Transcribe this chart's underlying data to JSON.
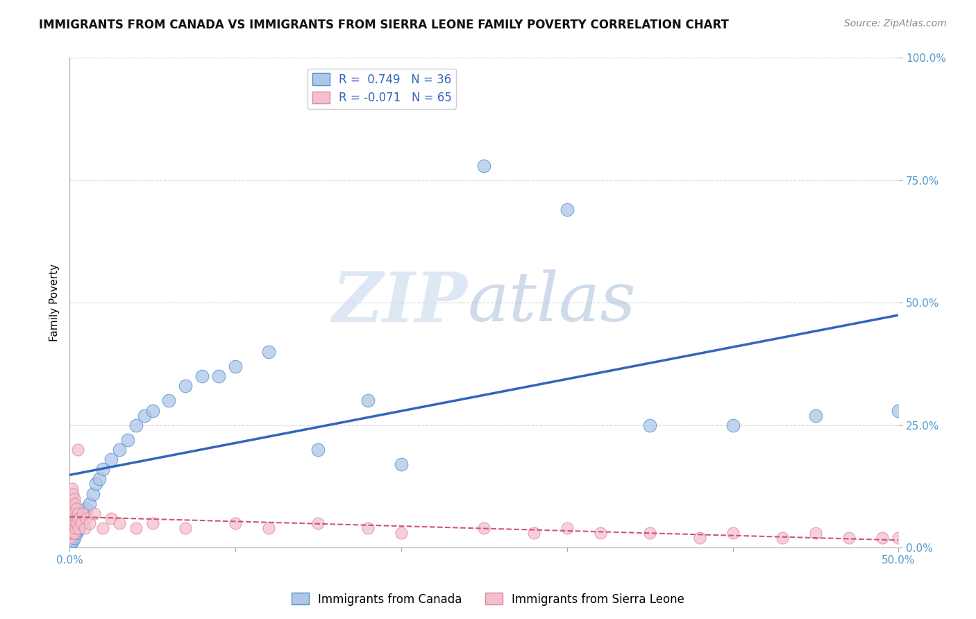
{
  "title": "IMMIGRANTS FROM CANADA VS IMMIGRANTS FROM SIERRA LEONE FAMILY POVERTY CORRELATION CHART",
  "source": "Source: ZipAtlas.com",
  "ylabel": "Family Poverty",
  "x_tick_labels": [
    "0.0%",
    "",
    "",
    "",
    "",
    "50.0%"
  ],
  "x_tick_values": [
    0,
    10,
    20,
    30,
    40,
    50
  ],
  "y_tick_labels": [
    "0.0%",
    "25.0%",
    "50.0%",
    "75.0%",
    "100.0%"
  ],
  "y_tick_values": [
    0,
    25,
    50,
    75,
    100
  ],
  "xlim": [
    0,
    50
  ],
  "ylim": [
    0,
    100
  ],
  "canada_color": "#aec6e8",
  "canada_edge_color": "#5090cc",
  "canada_line_color": "#3366bb",
  "sierraleone_color": "#f5c0ce",
  "sierraleone_edge_color": "#dd8899",
  "sierraleone_line_color": "#cc5577",
  "background_color": "#ffffff",
  "legend_canada_label": "R =  0.749   N = 36",
  "legend_sierraleone_label": "R = -0.071   N = 65",
  "tick_color": "#5599cc",
  "canada_x": [
    0.1,
    0.2,
    0.3,
    0.4,
    0.5,
    0.6,
    0.7,
    0.8,
    0.9,
    1.0,
    1.2,
    1.4,
    1.6,
    1.8,
    2.0,
    2.5,
    3.0,
    3.5,
    4.0,
    4.5,
    5.0,
    6.0,
    7.0,
    8.0,
    9.0,
    10.0,
    12.0,
    15.0,
    18.0,
    20.0,
    25.0,
    30.0,
    35.0,
    40.0,
    45.0,
    50.0
  ],
  "canada_y": [
    1.0,
    1.5,
    2.0,
    3.0,
    3.5,
    4.0,
    5.0,
    6.0,
    7.0,
    8.0,
    9.0,
    11.0,
    13.0,
    14.0,
    16.0,
    18.0,
    20.0,
    22.0,
    25.0,
    27.0,
    28.0,
    30.0,
    33.0,
    35.0,
    35.0,
    37.0,
    40.0,
    20.0,
    30.0,
    17.0,
    78.0,
    69.0,
    25.0,
    25.0,
    27.0,
    28.0
  ],
  "sierraleone_x": [
    0.05,
    0.07,
    0.08,
    0.09,
    0.1,
    0.1,
    0.1,
    0.12,
    0.13,
    0.14,
    0.15,
    0.15,
    0.16,
    0.17,
    0.18,
    0.19,
    0.2,
    0.2,
    0.22,
    0.23,
    0.25,
    0.25,
    0.27,
    0.28,
    0.3,
    0.3,
    0.32,
    0.35,
    0.38,
    0.4,
    0.42,
    0.45,
    0.5,
    0.55,
    0.6,
    0.7,
    0.8,
    0.9,
    1.0,
    1.2,
    1.5,
    2.0,
    2.5,
    3.0,
    4.0,
    5.0,
    7.0,
    10.0,
    12.0,
    15.0,
    18.0,
    20.0,
    25.0,
    28.0,
    30.0,
    32.0,
    35.0,
    38.0,
    40.0,
    43.0,
    45.0,
    47.0,
    49.0,
    50.0,
    0.5
  ],
  "sierraleone_y": [
    2.0,
    3.0,
    4.0,
    5.0,
    6.0,
    8.0,
    10.0,
    3.0,
    5.0,
    7.0,
    9.0,
    12.0,
    4.0,
    6.0,
    8.0,
    11.0,
    3.0,
    7.0,
    5.0,
    9.0,
    4.0,
    8.0,
    6.0,
    10.0,
    3.0,
    7.0,
    5.0,
    9.0,
    4.0,
    6.0,
    8.0,
    5.0,
    7.0,
    4.0,
    6.0,
    5.0,
    7.0,
    4.0,
    6.0,
    5.0,
    7.0,
    4.0,
    6.0,
    5.0,
    4.0,
    5.0,
    4.0,
    5.0,
    4.0,
    5.0,
    4.0,
    3.0,
    4.0,
    3.0,
    4.0,
    3.0,
    3.0,
    2.0,
    3.0,
    2.0,
    3.0,
    2.0,
    2.0,
    2.0,
    20.0
  ]
}
